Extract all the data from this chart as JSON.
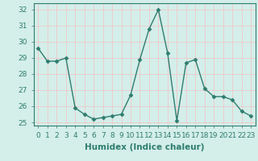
{
  "x": [
    0,
    1,
    2,
    3,
    4,
    5,
    6,
    7,
    8,
    9,
    10,
    11,
    12,
    13,
    14,
    15,
    16,
    17,
    18,
    19,
    20,
    21,
    22,
    23
  ],
  "y": [
    29.6,
    28.8,
    28.8,
    29.0,
    25.9,
    25.5,
    25.2,
    25.3,
    25.4,
    25.5,
    26.7,
    28.9,
    30.8,
    32.0,
    29.3,
    25.1,
    28.7,
    28.9,
    27.1,
    26.6,
    26.6,
    26.4,
    25.7,
    25.4
  ],
  "line_color": "#2e7d6e",
  "marker": "D",
  "markersize": 2.5,
  "linewidth": 1.0,
  "xlabel": "Humidex (Indice chaleur)",
  "ylim": [
    24.8,
    32.4
  ],
  "xlim": [
    -0.5,
    23.5
  ],
  "yticks": [
    25,
    26,
    27,
    28,
    29,
    30,
    31,
    32
  ],
  "xticks": [
    0,
    1,
    2,
    3,
    4,
    5,
    6,
    7,
    8,
    9,
    10,
    11,
    12,
    13,
    14,
    15,
    16,
    17,
    18,
    19,
    20,
    21,
    22,
    23
  ],
  "xtick_labels": [
    "0",
    "1",
    "2",
    "3",
    "4",
    "5",
    "6",
    "7",
    "8",
    "9",
    "10",
    "11",
    "12",
    "13",
    "14",
    "15",
    "16",
    "17",
    "18",
    "19",
    "20",
    "21",
    "22",
    "23"
  ],
  "background_color": "#d4eeea",
  "grid_color": "#f0c8c8",
  "tick_fontsize": 6.5,
  "xlabel_fontsize": 7.5,
  "tick_color": "#2e7d6e",
  "spine_color": "#2e7d6e"
}
